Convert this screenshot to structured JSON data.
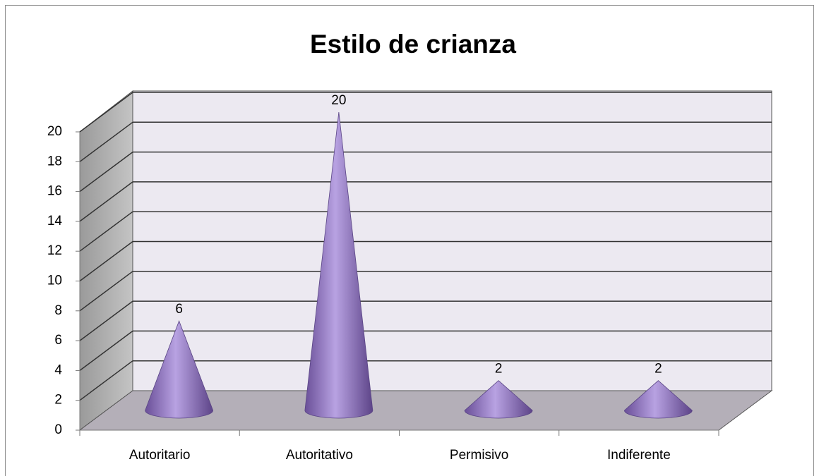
{
  "chart_data": {
    "type": "cone",
    "title": "Estilo de crianza",
    "categories": [
      "Autoritario",
      "Autoritativo",
      "Permisivo",
      "Indiferente"
    ],
    "values": [
      6,
      20,
      2,
      2
    ],
    "color": "#8e72c2",
    "ylim": [
      0,
      20
    ],
    "yticks": [
      0,
      2,
      4,
      6,
      8,
      10,
      12,
      14,
      16,
      18,
      20
    ],
    "grid": true
  }
}
